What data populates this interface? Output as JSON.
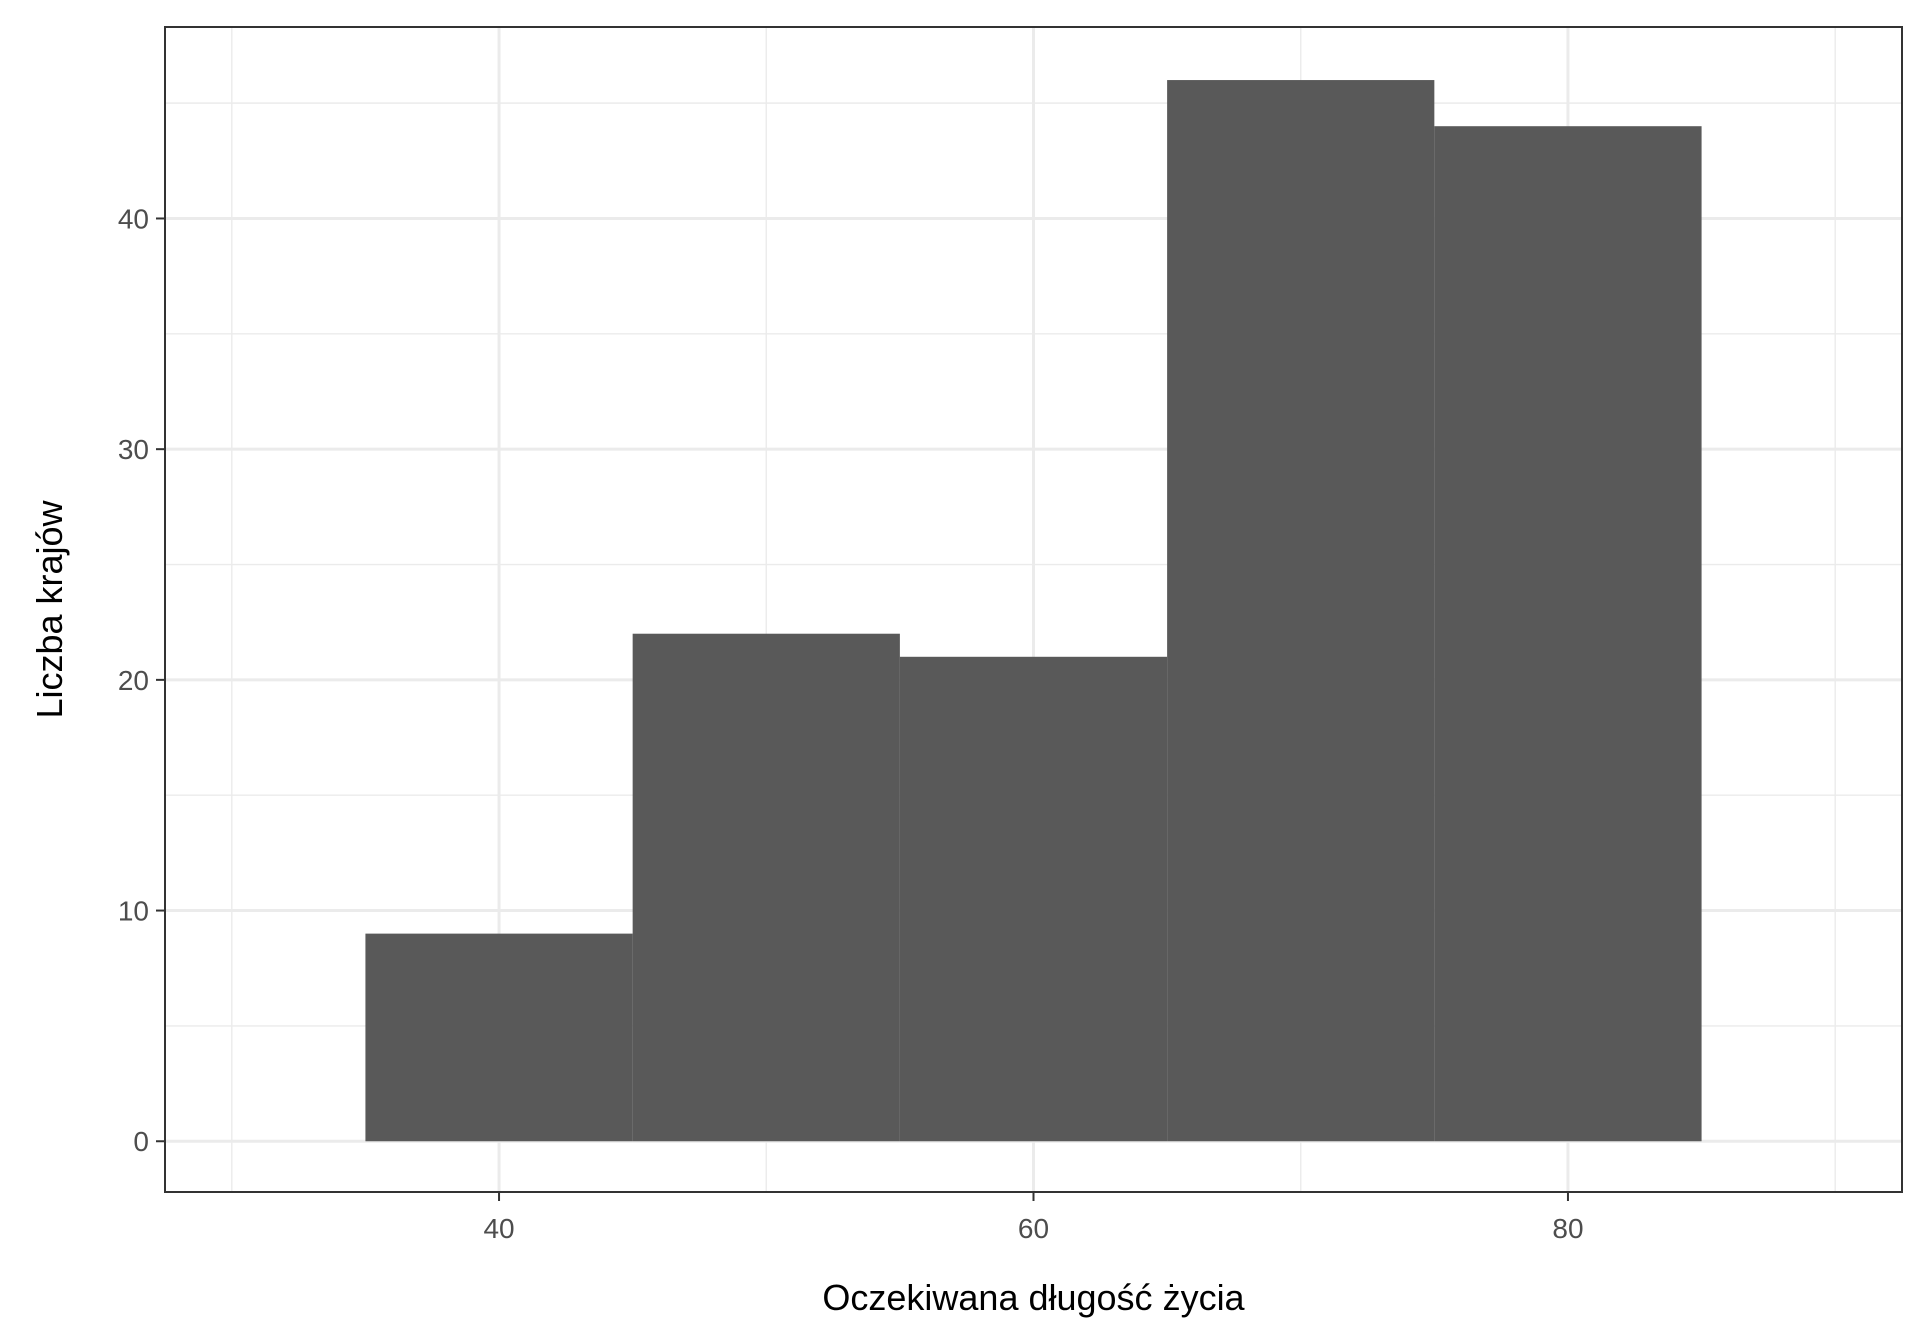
{
  "chart_data": {
    "type": "bar",
    "subtype": "histogram",
    "title": "",
    "xlabel": "Oczekiwana długość życia",
    "ylabel": "Liczba krajów",
    "bins": [
      {
        "start": 35,
        "end": 45,
        "count": 9
      },
      {
        "start": 45,
        "end": 55,
        "count": 22
      },
      {
        "start": 55,
        "end": 65,
        "count": 21
      },
      {
        "start": 65,
        "end": 75,
        "count": 46
      },
      {
        "start": 75,
        "end": 85,
        "count": 44
      }
    ],
    "xlim": [
      27.5,
      92.5
    ],
    "ylim": [
      -2.2,
      48.3
    ],
    "x_ticks": [
      40,
      60,
      80
    ],
    "x_tick_labels": [
      "40",
      "60",
      "80"
    ],
    "x_minor_ticks": [
      30,
      50,
      70,
      90
    ],
    "y_ticks": [
      0,
      10,
      20,
      30,
      40
    ],
    "y_tick_labels": [
      "0",
      "10",
      "20",
      "30",
      "40"
    ],
    "y_minor_ticks": [
      5,
      15,
      25,
      35,
      45
    ],
    "grid": true,
    "legend": "none",
    "colors": {
      "bar_fill": "#595959",
      "grid": "#ebebeb",
      "panel_border": "#333333",
      "background": "#ffffff"
    }
  }
}
